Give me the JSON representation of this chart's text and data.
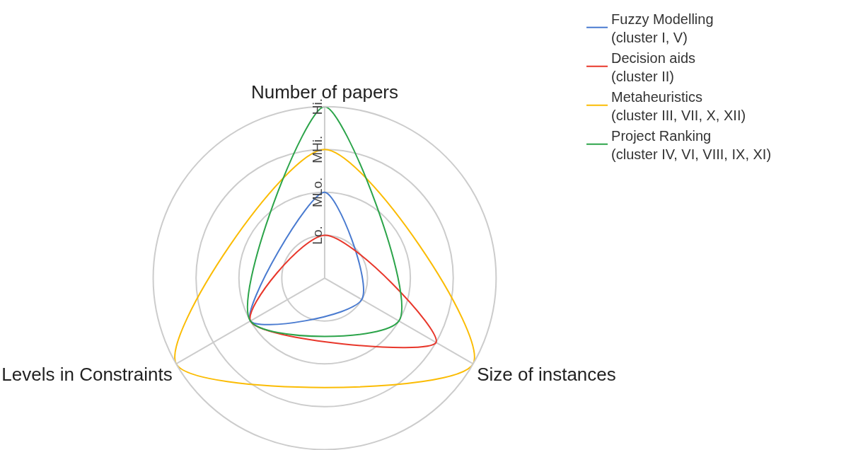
{
  "chart_data": {
    "type": "radar",
    "categories": [
      "Number of papers",
      "Size of instances",
      "Levels in Constraints"
    ],
    "ylim": [
      0,
      4
    ],
    "yticks": [
      {
        "value": 1,
        "label": "Lo."
      },
      {
        "value": 2,
        "label": "MLo."
      },
      {
        "value": 3,
        "label": "MHi."
      },
      {
        "value": 4,
        "label": "Hi."
      }
    ],
    "grid": true,
    "legend": "top right",
    "series": [
      {
        "name": "Fuzzy Modelling\n(cluster I, V)",
        "color": "#4a7bd0",
        "values": [
          2,
          1,
          2
        ]
      },
      {
        "name": "Decision aids\n(cluster II)",
        "color": "#e8372b",
        "values": [
          1,
          3,
          2
        ]
      },
      {
        "name": "Metaheuristics\n(cluster III, VII, X, XII)",
        "color": "#fbbc04",
        "values": [
          3,
          4,
          4
        ]
      },
      {
        "name": "Project Ranking\n(cluster IV, VI, VIII, IX, XI)",
        "color": "#2ca44a",
        "values": [
          4,
          2,
          2
        ]
      }
    ]
  }
}
